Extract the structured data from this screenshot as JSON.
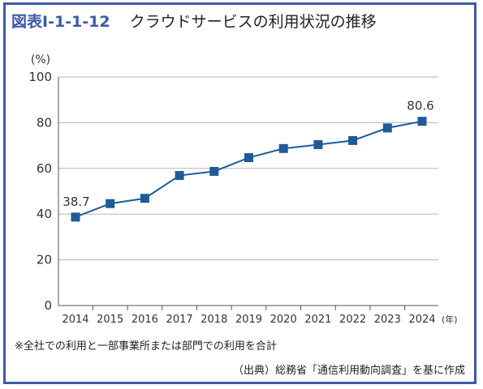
{
  "header": {
    "figure_number": "図表Ⅰ-1-1-12",
    "title": "クラウドサービスの利用状況の推移"
  },
  "chart_data": {
    "type": "line",
    "x": [
      "2014",
      "2015",
      "2016",
      "2017",
      "2018",
      "2019",
      "2020",
      "2021",
      "2022",
      "2023",
      "2024"
    ],
    "series": [
      {
        "values": [
          38.7,
          44.6,
          46.9,
          56.9,
          58.7,
          64.7,
          68.7,
          70.4,
          72.2,
          77.7,
          80.6
        ]
      }
    ],
    "ylabel": "(%)",
    "xunit": "(年)",
    "ylim": [
      0,
      100
    ],
    "yticks": [
      0,
      20,
      40,
      60,
      80,
      100
    ],
    "grid": true,
    "line_color": "#1f5b98",
    "annotations": [
      {
        "x": "2014",
        "text": "38.7"
      },
      {
        "x": "2024",
        "text": "80.6"
      }
    ]
  },
  "footer": {
    "note": "※全社での利用と一部事業所または部門での利用を合計",
    "source": "（出典）総務省「通信利用動向調査」を基に作成"
  }
}
